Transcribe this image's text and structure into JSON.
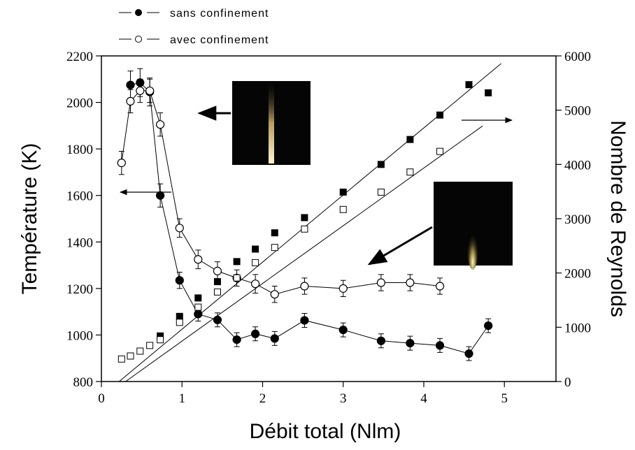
{
  "chart_data": {
    "type": "line",
    "x_label": "Débit total (Nlm)",
    "y_label": "Température (K)",
    "y2_label": "Nombre de Reynolds",
    "xlim": [
      0,
      5.64
    ],
    "xticks": [
      0,
      1,
      2,
      3,
      4,
      5
    ],
    "ylim": [
      800,
      2200
    ],
    "yticks": [
      800,
      1000,
      1200,
      1400,
      1600,
      1800,
      2000,
      2200
    ],
    "y2lim": [
      0,
      6000
    ],
    "y2ticks": [
      0,
      1000,
      2000,
      3000,
      4000,
      5000,
      6000
    ],
    "legend": "top-left",
    "color": "#000000",
    "series": [
      {
        "name": "sans confinement",
        "marker": "filled-circle",
        "connect": true,
        "x": [
          0.36,
          0.48,
          0.6,
          0.73,
          0.97,
          1.2,
          1.44,
          1.68,
          1.91,
          2.15,
          2.52,
          3.0,
          3.47,
          3.83,
          4.2,
          4.56,
          4.8
        ],
        "values": [
          2075,
          2085,
          2045,
          1600,
          1235,
          1090,
          1065,
          980,
          1005,
          985,
          1063,
          1022,
          975,
          965,
          955,
          920,
          1040
        ],
        "errors": [
          60,
          60,
          60,
          50,
          35,
          30,
          30,
          30,
          30,
          30,
          30,
          30,
          30,
          30,
          30,
          30,
          30
        ]
      },
      {
        "name": "avec confinement",
        "marker": "open-circle",
        "connect": true,
        "x": [
          0.25,
          0.36,
          0.48,
          0.6,
          0.73,
          0.97,
          1.2,
          1.44,
          1.68,
          1.91,
          2.15,
          2.52,
          3.0,
          3.47,
          3.83,
          4.2
        ],
        "values": [
          1740,
          2005,
          2050,
          2050,
          1905,
          1460,
          1325,
          1275,
          1245,
          1220,
          1175,
          1210,
          1200,
          1225,
          1225,
          1210
        ],
        "errors": [
          50,
          50,
          50,
          50,
          50,
          40,
          40,
          40,
          35,
          40,
          35,
          35,
          35,
          35,
          35,
          35
        ]
      },
      {
        "marker": "filled-square",
        "axis": "y2",
        "connect": false,
        "x": [
          0.73,
          0.97,
          1.2,
          1.44,
          1.68,
          1.91,
          2.15,
          2.52,
          3.0,
          3.47,
          3.83,
          4.2,
          4.56,
          4.8
        ],
        "values": [
          840,
          1200,
          1540,
          1840,
          2210,
          2440,
          2740,
          3020,
          3490,
          4000,
          4460,
          4910,
          5470,
          5320
        ]
      },
      {
        "marker": "open-square",
        "axis": "y2",
        "connect": false,
        "x": [
          0.25,
          0.36,
          0.48,
          0.6,
          0.73,
          0.97,
          1.2,
          1.44,
          1.68,
          1.91,
          2.15,
          2.52,
          3.0,
          3.47,
          3.83,
          4.2
        ],
        "values": [
          415,
          470,
          560,
          665,
          770,
          1090,
          1370,
          1650,
          1910,
          2190,
          2470,
          2810,
          3170,
          3490,
          3860,
          4240
        ]
      }
    ],
    "fits": [
      {
        "axis": "y2",
        "x": [
          0.22,
          4.96
        ],
        "values": [
          0,
          5860
        ]
      },
      {
        "axis": "y2",
        "x": [
          0.3,
          4.73
        ],
        "values": [
          0,
          4710
        ]
      }
    ]
  }
}
